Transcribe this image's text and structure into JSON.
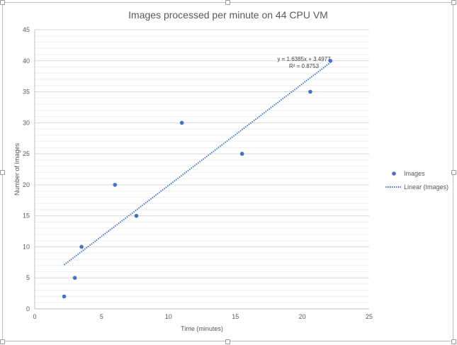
{
  "chart_data": {
    "type": "scatter",
    "title": "Images processed per minute on 44 CPU VM",
    "xlabel": "Time (minutes)",
    "ylabel": "Number of Images",
    "xlim": [
      0,
      25
    ],
    "ylim": [
      0,
      45
    ],
    "x_ticks": [
      "0",
      "5",
      "10",
      "15",
      "20",
      "25"
    ],
    "y_ticks": [
      "0",
      "5",
      "10",
      "15",
      "20",
      "25",
      "30",
      "35",
      "40",
      "45"
    ],
    "grid": true,
    "legend_position": "right",
    "series": [
      {
        "name": "Images",
        "color": "#4472c4",
        "points": [
          {
            "x": 2.2,
            "y": 2
          },
          {
            "x": 3.0,
            "y": 5
          },
          {
            "x": 3.5,
            "y": 10
          },
          {
            "x": 6.0,
            "y": 20
          },
          {
            "x": 7.6,
            "y": 15
          },
          {
            "x": 11.0,
            "y": 30
          },
          {
            "x": 15.5,
            "y": 25
          },
          {
            "x": 20.6,
            "y": 35
          },
          {
            "x": 22.1,
            "y": 40
          }
        ]
      }
    ],
    "trendline": {
      "name": "Linear (Images)",
      "type": "linear",
      "color": "#4472c4",
      "slope": 1.6385,
      "intercept": 3.4977,
      "x_range": [
        2.2,
        22.1
      ],
      "equation_label": "y = 1.6385x + 3.4977",
      "r2_label": "R² = 0.8753"
    }
  }
}
